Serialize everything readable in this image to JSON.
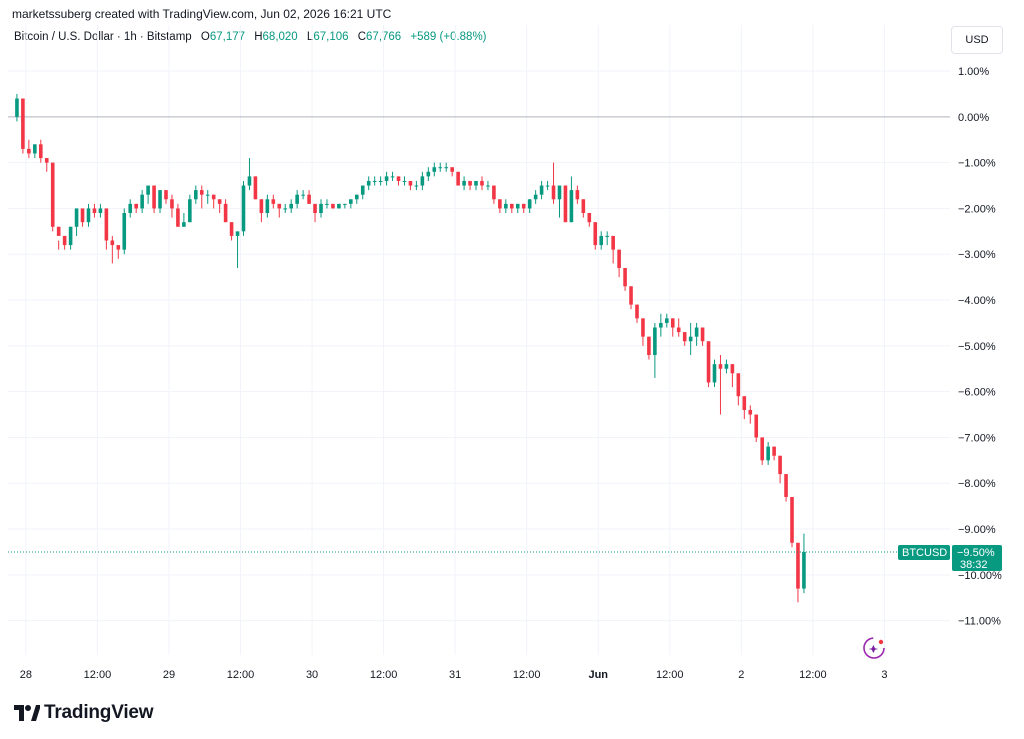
{
  "header": {
    "caption": "marketssuberg created with TradingView.com, Jun 02, 2026 16:21 UTC",
    "symbol": "Bitcoin / U.S. Dollar · 1h · Bitstamp",
    "open_label": "O",
    "open_value": "67,177",
    "high_label": "H",
    "high_value": "68,020",
    "low_label": "L",
    "low_value": "67,106",
    "close_label": "C",
    "close_value": "67,766",
    "change": "+589 (+0.88%)",
    "currency_button": "USD"
  },
  "price_badge": {
    "ticker": "BTCUSD",
    "value": "−9.50%",
    "countdown": "38:32",
    "color": "#089981"
  },
  "footer": {
    "brand": "TradingView"
  },
  "icons": {
    "logo": "tradingview-logo-icon",
    "assistant": "sparkle-assistant-icon"
  },
  "colors": {
    "up": "#089981",
    "down": "#f23645",
    "grid": "#f0f3fa",
    "zero_line": "#b2b5be"
  },
  "chart_data": {
    "type": "candlestick",
    "title": "",
    "xlabel": "",
    "ylabel": "",
    "ylim": [
      -11.75,
      1.35
    ],
    "y_ticks": [
      1,
      0,
      -1,
      -2,
      -3,
      -4,
      -5,
      -6,
      -7,
      -8,
      -9,
      -10,
      -11
    ],
    "y_tick_labels": [
      "1.00%",
      "0.00%",
      "−1.00%",
      "−2.00%",
      "−3.00%",
      "−4.00%",
      "−5.00%",
      "−6.00%",
      "−7.00%",
      "−8.00%",
      "−9.00%",
      "−10.00%",
      "−11.00%"
    ],
    "x_ticks": [
      {
        "label": "28",
        "hour": 0
      },
      {
        "label": "12:00",
        "hour": 12
      },
      {
        "label": "29",
        "hour": 24
      },
      {
        "label": "12:00",
        "hour": 36
      },
      {
        "label": "30",
        "hour": 48
      },
      {
        "label": "12:00",
        "hour": 60
      },
      {
        "label": "31",
        "hour": 72
      },
      {
        "label": "12:00",
        "hour": 84
      },
      {
        "label": "Jun",
        "hour": 96
      },
      {
        "label": "12:00",
        "hour": 108
      },
      {
        "label": "2",
        "hour": 120
      },
      {
        "label": "12:00",
        "hour": 132
      },
      {
        "label": "3",
        "hour": 144
      }
    ],
    "x_range_hours": [
      -3,
      155
    ],
    "first_candle_hour": -1.5,
    "candle_interval_hours": 1,
    "ohlc_percent": [
      [
        0.0,
        0.5,
        -0.1,
        0.4
      ],
      [
        0.4,
        0.4,
        -0.8,
        -0.7
      ],
      [
        -0.7,
        -0.5,
        -0.9,
        -0.8
      ],
      [
        -0.8,
        -0.6,
        -0.9,
        -0.6
      ],
      [
        -0.6,
        -0.5,
        -1.0,
        -0.9
      ],
      [
        -0.9,
        -0.9,
        -1.2,
        -1.0
      ],
      [
        -1.0,
        -1.0,
        -2.5,
        -2.4
      ],
      [
        -2.4,
        -2.7,
        -2.9,
        -2.6
      ],
      [
        -2.6,
        -2.6,
        -2.9,
        -2.8
      ],
      [
        -2.8,
        -2.4,
        -2.9,
        -2.4
      ],
      [
        -2.4,
        -2.0,
        -2.6,
        -2.0
      ],
      [
        -2.0,
        -2.1,
        -2.4,
        -2.3
      ],
      [
        -2.3,
        -1.9,
        -2.4,
        -2.0
      ],
      [
        -2.0,
        -1.9,
        -2.2,
        -2.1
      ],
      [
        -2.1,
        -1.9,
        -2.2,
        -2.0
      ],
      [
        -2.0,
        -2.0,
        -2.9,
        -2.7
      ],
      [
        -2.7,
        -2.6,
        -3.2,
        -2.8
      ],
      [
        -2.8,
        -2.9,
        -3.1,
        -2.9
      ],
      [
        -2.9,
        -2.0,
        -3.0,
        -2.1
      ],
      [
        -2.1,
        -1.8,
        -2.2,
        -1.9
      ],
      [
        -1.9,
        -1.9,
        -2.1,
        -2.0
      ],
      [
        -2.0,
        -1.6,
        -2.1,
        -1.7
      ],
      [
        -1.7,
        -1.5,
        -1.9,
        -1.5
      ],
      [
        -1.5,
        -1.6,
        -2.1,
        -2.0
      ],
      [
        -2.0,
        -1.6,
        -2.1,
        -1.6
      ],
      [
        -1.6,
        -1.6,
        -1.9,
        -1.8
      ],
      [
        -1.8,
        -1.7,
        -2.2,
        -2.0
      ],
      [
        -2.0,
        -1.9,
        -2.4,
        -2.4
      ],
      [
        -2.4,
        -2.1,
        -2.4,
        -2.3
      ],
      [
        -2.3,
        -1.7,
        -2.3,
        -1.8
      ],
      [
        -1.8,
        -1.5,
        -1.9,
        -1.6
      ],
      [
        -1.6,
        -1.5,
        -2.0,
        -1.7
      ],
      [
        -1.7,
        -1.6,
        -1.9,
        -1.7
      ],
      [
        -1.7,
        -1.7,
        -2.0,
        -1.8
      ],
      [
        -1.8,
        -1.8,
        -2.1,
        -1.9
      ],
      [
        -1.9,
        -1.8,
        -2.3,
        -2.3
      ],
      [
        -2.3,
        -2.3,
        -2.7,
        -2.6
      ],
      [
        -2.6,
        -2.6,
        -3.3,
        -2.5
      ],
      [
        -2.5,
        -1.4,
        -2.6,
        -1.5
      ],
      [
        -1.5,
        -0.9,
        -1.6,
        -1.3
      ],
      [
        -1.3,
        -1.3,
        -1.8,
        -1.8
      ],
      [
        -1.8,
        -1.8,
        -2.3,
        -2.1
      ],
      [
        -2.1,
        -1.7,
        -2.2,
        -1.8
      ],
      [
        -1.8,
        -1.7,
        -2.0,
        -1.9
      ],
      [
        -1.9,
        -1.9,
        -2.2,
        -2.0
      ],
      [
        -2.0,
        -1.9,
        -2.1,
        -2.0
      ],
      [
        -2.0,
        -1.8,
        -2.1,
        -1.9
      ],
      [
        -1.9,
        -1.6,
        -2.0,
        -1.7
      ],
      [
        -1.7,
        -1.6,
        -1.8,
        -1.7
      ],
      [
        -1.7,
        -1.6,
        -1.9,
        -1.9
      ],
      [
        -1.9,
        -1.9,
        -2.3,
        -2.1
      ],
      [
        -2.1,
        -1.8,
        -2.2,
        -1.9
      ],
      [
        -1.9,
        -1.8,
        -2.0,
        -1.9
      ],
      [
        -1.9,
        -1.9,
        -2.0,
        -2.0
      ],
      [
        -2.0,
        -1.9,
        -2.0,
        -1.9
      ],
      [
        -1.9,
        -1.9,
        -2.0,
        -1.9
      ],
      [
        -1.9,
        -1.8,
        -2.0,
        -1.8
      ],
      [
        -1.8,
        -1.7,
        -1.9,
        -1.7
      ],
      [
        -1.7,
        -1.5,
        -1.8,
        -1.5
      ],
      [
        -1.5,
        -1.3,
        -1.6,
        -1.4
      ],
      [
        -1.4,
        -1.3,
        -1.5,
        -1.4
      ],
      [
        -1.4,
        -1.3,
        -1.5,
        -1.4
      ],
      [
        -1.4,
        -1.2,
        -1.5,
        -1.3
      ],
      [
        -1.3,
        -1.2,
        -1.4,
        -1.3
      ],
      [
        -1.3,
        -1.3,
        -1.5,
        -1.4
      ],
      [
        -1.4,
        -1.3,
        -1.5,
        -1.4
      ],
      [
        -1.4,
        -1.4,
        -1.6,
        -1.5
      ],
      [
        -1.5,
        -1.4,
        -1.6,
        -1.5
      ],
      [
        -1.5,
        -1.2,
        -1.6,
        -1.3
      ],
      [
        -1.3,
        -1.1,
        -1.4,
        -1.2
      ],
      [
        -1.2,
        -1.0,
        -1.3,
        -1.1
      ],
      [
        -1.1,
        -1.0,
        -1.2,
        -1.1
      ],
      [
        -1.1,
        -1.0,
        -1.2,
        -1.1
      ],
      [
        -1.1,
        -1.1,
        -1.3,
        -1.2
      ],
      [
        -1.2,
        -1.2,
        -1.5,
        -1.5
      ],
      [
        -1.5,
        -1.3,
        -1.6,
        -1.4
      ],
      [
        -1.4,
        -1.4,
        -1.6,
        -1.5
      ],
      [
        -1.5,
        -1.4,
        -1.6,
        -1.4
      ],
      [
        -1.4,
        -1.3,
        -1.6,
        -1.5
      ],
      [
        -1.5,
        -1.4,
        -1.6,
        -1.5
      ],
      [
        -1.5,
        -1.5,
        -1.9,
        -1.8
      ],
      [
        -1.8,
        -1.8,
        -2.1,
        -2.0
      ],
      [
        -2.0,
        -1.8,
        -2.1,
        -1.9
      ],
      [
        -1.9,
        -1.9,
        -2.1,
        -2.0
      ],
      [
        -2.0,
        -1.9,
        -2.1,
        -1.9
      ],
      [
        -1.9,
        -1.9,
        -2.1,
        -2.0
      ],
      [
        -2.0,
        -1.8,
        -2.1,
        -1.8
      ],
      [
        -1.8,
        -1.6,
        -1.9,
        -1.7
      ],
      [
        -1.7,
        -1.4,
        -1.8,
        -1.5
      ],
      [
        -1.5,
        -1.4,
        -1.6,
        -1.5
      ],
      [
        -1.5,
        -1.0,
        -1.9,
        -1.8
      ],
      [
        -1.8,
        -1.5,
        -2.2,
        -1.5
      ],
      [
        -1.5,
        -1.5,
        -2.3,
        -2.3
      ],
      [
        -2.3,
        -1.3,
        -2.3,
        -1.6
      ],
      [
        -1.6,
        -1.5,
        -1.9,
        -1.8
      ],
      [
        -1.8,
        -1.8,
        -2.2,
        -2.1
      ],
      [
        -2.1,
        -2.1,
        -2.4,
        -2.3
      ],
      [
        -2.3,
        -2.3,
        -2.9,
        -2.8
      ],
      [
        -2.8,
        -2.5,
        -2.9,
        -2.6
      ],
      [
        -2.6,
        -2.5,
        -2.8,
        -2.6
      ],
      [
        -2.6,
        -2.6,
        -3.2,
        -2.9
      ],
      [
        -2.9,
        -2.9,
        -3.5,
        -3.3
      ],
      [
        -3.3,
        -3.3,
        -3.8,
        -3.7
      ],
      [
        -3.7,
        -3.7,
        -4.2,
        -4.1
      ],
      [
        -4.1,
        -4.1,
        -4.5,
        -4.4
      ],
      [
        -4.4,
        -4.4,
        -5.0,
        -4.8
      ],
      [
        -4.8,
        -4.8,
        -5.3,
        -5.2
      ],
      [
        -5.2,
        -4.5,
        -5.7,
        -4.6
      ],
      [
        -4.6,
        -4.3,
        -4.8,
        -4.5
      ],
      [
        -4.5,
        -4.3,
        -4.6,
        -4.4
      ],
      [
        -4.4,
        -4.4,
        -4.8,
        -4.6
      ],
      [
        -4.6,
        -4.4,
        -4.8,
        -4.7
      ],
      [
        -4.7,
        -4.7,
        -5.0,
        -4.9
      ],
      [
        -4.9,
        -4.5,
        -5.2,
        -4.8
      ],
      [
        -4.8,
        -4.5,
        -5.0,
        -4.6
      ],
      [
        -4.6,
        -4.6,
        -5.0,
        -4.9
      ],
      [
        -4.9,
        -4.9,
        -5.9,
        -5.8
      ],
      [
        -5.8,
        -5.3,
        -5.9,
        -5.4
      ],
      [
        -5.4,
        -5.2,
        -6.5,
        -5.5
      ],
      [
        -5.5,
        -5.3,
        -5.6,
        -5.4
      ],
      [
        -5.4,
        -5.4,
        -5.9,
        -5.6
      ],
      [
        -5.6,
        -5.6,
        -6.3,
        -6.1
      ],
      [
        -6.1,
        -6.1,
        -6.6,
        -6.4
      ],
      [
        -6.4,
        -6.3,
        -6.7,
        -6.5
      ],
      [
        -6.5,
        -6.5,
        -7.1,
        -7.0
      ],
      [
        -7.0,
        -7.0,
        -7.6,
        -7.5
      ],
      [
        -7.5,
        -7.1,
        -7.6,
        -7.2
      ],
      [
        -7.2,
        -7.2,
        -7.5,
        -7.4
      ],
      [
        -7.4,
        -7.4,
        -8.0,
        -7.8
      ],
      [
        -7.8,
        -7.8,
        -8.4,
        -8.3
      ],
      [
        -8.3,
        -8.3,
        -9.4,
        -9.3
      ],
      [
        -9.3,
        -9.3,
        -10.6,
        -10.3
      ],
      [
        -10.3,
        -9.1,
        -10.4,
        -9.5
      ]
    ],
    "current_value": -9.5,
    "grid": true,
    "legend": "top-left"
  }
}
